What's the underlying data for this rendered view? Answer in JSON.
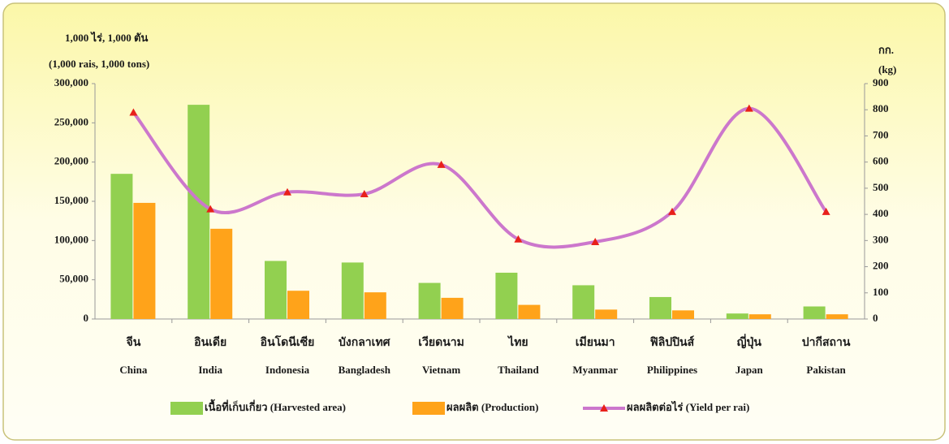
{
  "chart_data": {
    "type": "bar_line",
    "ylabel": [
      "1,000 ไร่,  1,000 ตัน",
      "(1,000 rais,  1,000 tons)"
    ],
    "y2label": [
      "กก.",
      "(kg)"
    ],
    "categories": [
      [
        "จีน",
        "China"
      ],
      [
        "อินเดีย",
        "India"
      ],
      [
        "อินโดนีเซีย",
        "Indonesia"
      ],
      [
        "บังกลาเทศ",
        "Bangladesh"
      ],
      [
        "เวียดนาม",
        "Vietnam"
      ],
      [
        "ไทย",
        "Thailand"
      ],
      [
        "เมียนมา",
        "Myanmar"
      ],
      [
        "ฟิลิปปินส์",
        "Philippines"
      ],
      [
        "ญี่ปุ่น",
        "Japan"
      ],
      [
        "ปากีสถาน",
        "Pakistan"
      ]
    ],
    "series": [
      {
        "name": "เนื้อที่เก็บเกี่ยว (Harvested area)",
        "color": "#92d050",
        "kind": "bar",
        "values": [
          185000,
          273000,
          74000,
          72000,
          46000,
          59000,
          43000,
          28000,
          7000,
          16000
        ]
      },
      {
        "name": "ผลผลิต  (Production)",
        "color": "#ffa31a",
        "kind": "bar",
        "values": [
          148000,
          115000,
          36000,
          34000,
          27000,
          18000,
          12000,
          11000,
          6000,
          6000
        ]
      },
      {
        "name": "ผลผลิตต่อไร่ (Yield per rai)",
        "color": "#cc77cc",
        "marker_color": "#e8201a",
        "kind": "line",
        "axis": "y2",
        "values": [
          790,
          420,
          485,
          478,
          590,
          305,
          295,
          410,
          805,
          410
        ]
      }
    ],
    "ylim": [
      0,
      300000
    ],
    "yticks": [
      0,
      {
        "value": 50000,
        "label": "50,000"
      },
      {
        "value": 100000,
        "label": "100,000"
      },
      {
        "value": 150000,
        "label": "150,000"
      },
      {
        "value": 200000,
        "label": "200,000"
      },
      {
        "value": 250000,
        "label": "250,000"
      },
      {
        "value": 300000,
        "label": "300,000"
      }
    ],
    "y2lim": [
      0,
      900
    ],
    "y2ticks": [
      0,
      100,
      200,
      300,
      400,
      500,
      600,
      700,
      800,
      900
    ],
    "grid": false,
    "legend": "bottom"
  }
}
